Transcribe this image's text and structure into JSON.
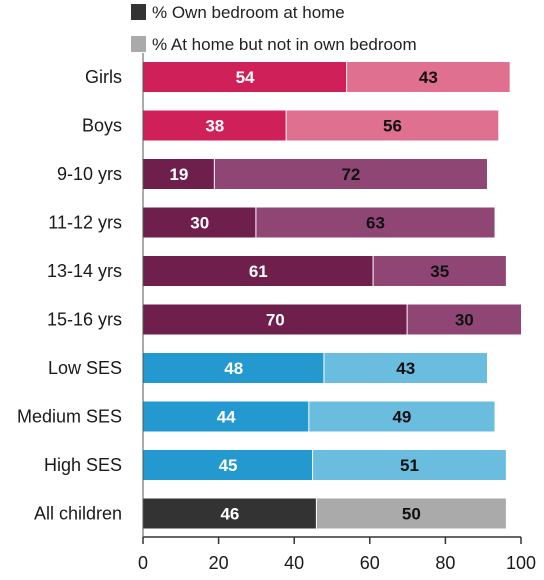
{
  "chart_data": {
    "type": "bar",
    "orientation": "horizontal",
    "stacked": true,
    "categories": [
      "Girls",
      "Boys",
      "9-10 yrs",
      "11-12 yrs",
      "13-14 yrs",
      "15-16 yrs",
      "Low SES",
      "Medium SES",
      "High SES",
      "All children"
    ],
    "series": [
      {
        "name": "% Own bedroom at home",
        "values": [
          54,
          38,
          19,
          30,
          61,
          70,
          48,
          44,
          45,
          46
        ]
      },
      {
        "name": "% At home but not in own bedroom",
        "values": [
          43,
          56,
          72,
          63,
          35,
          30,
          43,
          49,
          51,
          50
        ]
      }
    ],
    "xlim": [
      0,
      100
    ],
    "xticks": [
      0,
      20,
      40,
      60,
      80,
      100
    ],
    "grid": false,
    "legend_position": "top",
    "legend_colors": [
      "#333333",
      "#aaaaaa"
    ],
    "row_colors": [
      [
        "#d0205a",
        "#e0708f"
      ],
      [
        "#d0205a",
        "#e0708f"
      ],
      [
        "#6e1f4b",
        "#904675"
      ],
      [
        "#6e1f4b",
        "#904675"
      ],
      [
        "#6e1f4b",
        "#904675"
      ],
      [
        "#6e1f4b",
        "#904675"
      ],
      [
        "#2399d0",
        "#6bbde0"
      ],
      [
        "#2399d0",
        "#6bbde0"
      ],
      [
        "#2399d0",
        "#6bbde0"
      ],
      [
        "#333333",
        "#aaaaaa"
      ]
    ],
    "label_colors": [
      [
        "#ffffff",
        "#111111"
      ],
      [
        "#ffffff",
        "#111111"
      ],
      [
        "#ffffff",
        "#111111"
      ],
      [
        "#ffffff",
        "#111111"
      ],
      [
        "#ffffff",
        "#111111"
      ],
      [
        "#ffffff",
        "#111111"
      ],
      [
        "#ffffff",
        "#111111"
      ],
      [
        "#ffffff",
        "#111111"
      ],
      [
        "#ffffff",
        "#111111"
      ],
      [
        "#ffffff",
        "#111111"
      ]
    ]
  }
}
